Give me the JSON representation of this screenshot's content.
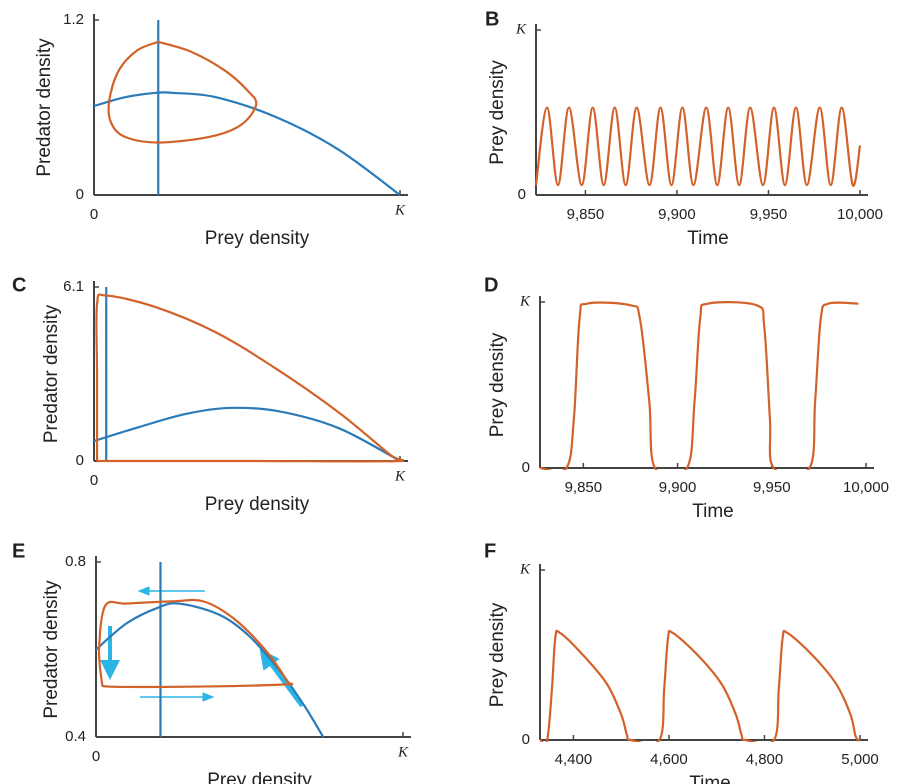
{
  "chart_data": [
    {
      "type": "line",
      "xlabel": "Prey density",
      "ylabel": "Predator density",
      "xlim": [
        0,
        1
      ],
      "xticks": [
        0,
        {
          "value": 1,
          "label": "K"
        }
      ],
      "ylim": [
        0,
        1.2
      ],
      "yticks": [
        0,
        1.2
      ],
      "series": [
        {
          "color": "#2b7bb9",
          "x": [
            0,
            0.1,
            0.2,
            0.26,
            0.4,
            0.6,
            0.8,
            1
          ],
          "values": [
            0.61,
            0.67,
            0.7,
            0.7,
            0.67,
            0.53,
            0.31,
            0
          ]
        },
        {
          "color": "#2b7bb9",
          "x": [
            0.21,
            0.21
          ],
          "values": [
            0,
            1.2
          ]
        },
        {
          "color": "#d2622a",
          "x": [
            0.21,
            0.32,
            0.43,
            0.5,
            0.53,
            0.48,
            0.38,
            0.21,
            0.1,
            0.055,
            0.05,
            0.08,
            0.14,
            0.21
          ],
          "values": [
            1.05,
            0.98,
            0.85,
            0.72,
            0.62,
            0.48,
            0.4,
            0.36,
            0.4,
            0.5,
            0.65,
            0.85,
            0.99,
            1.05
          ]
        }
      ]
    },
    {
      "type": "line",
      "label": "B",
      "xlabel": "Time",
      "ylabel": "Prey density",
      "xlim": [
        9823,
        10000
      ],
      "xticks": [
        {
          "value": 9850,
          "label": "9,850"
        },
        {
          "value": 9900,
          "label": "9,900"
        },
        {
          "value": 9950,
          "label": "9,950"
        },
        {
          "value": 10000,
          "label": "10,000"
        }
      ],
      "ylim": [
        0,
        1
      ],
      "yticks": [
        0,
        {
          "value": 1,
          "label": "K"
        }
      ],
      "series": [
        {
          "color": "#d2622a",
          "x": [
            9823,
            9829,
            9835,
            9841,
            9848,
            9854,
            9860,
            9866,
            9872,
            9878,
            9885,
            9891,
            9897,
            9903,
            9909,
            9916,
            9922,
            9928,
            9934,
            9940,
            9947,
            9953,
            9959,
            9965,
            9971,
            9978,
            9984,
            9990,
            9996,
            10000
          ],
          "values": [
            0.06,
            0.53,
            0.06,
            0.53,
            0.06,
            0.53,
            0.06,
            0.53,
            0.06,
            0.53,
            0.06,
            0.53,
            0.06,
            0.53,
            0.06,
            0.53,
            0.06,
            0.53,
            0.06,
            0.53,
            0.06,
            0.53,
            0.06,
            0.53,
            0.06,
            0.53,
            0.06,
            0.53,
            0.06,
            0.3
          ]
        }
      ]
    },
    {
      "type": "line",
      "label": "C",
      "xlabel": "Prey density",
      "ylabel": "Predator density",
      "xlim": [
        0,
        1
      ],
      "xticks": [
        0,
        {
          "value": 1,
          "label": "K"
        }
      ],
      "ylim": [
        0,
        6.1
      ],
      "yticks": [
        0,
        6.1
      ],
      "series": [
        {
          "color": "#2b7bb9",
          "x": [
            0,
            0.15,
            0.3,
            0.44,
            0.6,
            0.8,
            1
          ],
          "values": [
            0.7,
            1.2,
            1.65,
            1.86,
            1.75,
            1.15,
            0
          ]
        },
        {
          "color": "#2b7bb9",
          "x": [
            0.04,
            0.04
          ],
          "values": [
            0,
            6.1
          ]
        },
        {
          "color": "#d2622a",
          "x": [
            0.01,
            0.01,
            0.01,
            0.04,
            0.2,
            0.4,
            0.6,
            0.8,
            0.97,
            1,
            0.5,
            0.01
          ],
          "values": [
            0,
            3,
            5.5,
            5.8,
            5.4,
            4.5,
            3.2,
            1.7,
            0.2,
            0,
            0,
            0
          ]
        }
      ]
    },
    {
      "type": "line",
      "label": "D",
      "xlabel": "Time",
      "ylabel": "Prey density",
      "xlim": [
        9827,
        10000
      ],
      "xticks": [
        {
          "value": 9850,
          "label": "9,850"
        },
        {
          "value": 9900,
          "label": "9,900"
        },
        {
          "value": 9950,
          "label": "9,950"
        },
        {
          "value": 10000,
          "label": "10,000"
        }
      ],
      "ylim": [
        0,
        1
      ],
      "yticks": [
        0,
        {
          "value": 1,
          "label": "K"
        }
      ],
      "series": [
        {
          "color": "#d2622a",
          "x": [
            9827,
            9841,
            9845,
            9848,
            9852,
            9875,
            9880,
            9885,
            9888,
            9905,
            9909,
            9912,
            9916,
            9942,
            9946,
            9949,
            9951,
            9970,
            9973,
            9976,
            9980,
            9996
          ],
          "values": [
            0,
            0,
            0.3,
            0.9,
            0.99,
            0.98,
            0.9,
            0.4,
            0,
            0,
            0.4,
            0.9,
            0.99,
            0.98,
            0.85,
            0.3,
            0,
            0,
            0.4,
            0.9,
            0.99,
            0.99
          ]
        }
      ]
    },
    {
      "type": "line",
      "label": "E",
      "xlabel": "Prey density",
      "ylabel": "Predator density",
      "xlim": [
        0,
        1
      ],
      "xticks": [
        0,
        {
          "value": 1,
          "label": "K"
        }
      ],
      "ylim": [
        0.4,
        0.8
      ],
      "yticks": [
        0.4,
        0.8
      ],
      "series": [
        {
          "color": "#2b7bb9",
          "x": [
            0,
            0.1,
            0.2,
            0.27,
            0.4,
            0.5,
            0.6,
            0.68,
            0.74
          ],
          "values": [
            0.6,
            0.66,
            0.695,
            0.705,
            0.68,
            0.63,
            0.55,
            0.47,
            0.4
          ]
        },
        {
          "color": "#2b7bb9",
          "x": [
            0.21,
            0.21
          ],
          "values": [
            0.4,
            0.8
          ]
        },
        {
          "color": "#d2622a",
          "x": [
            0.02,
            0.01,
            0.03,
            0.1,
            0.25,
            0.35,
            0.45,
            0.55,
            0.62,
            0.61,
            0.3,
            0.05,
            0.02
          ],
          "values": [
            0.52,
            0.6,
            0.7,
            0.705,
            0.71,
            0.71,
            0.67,
            0.6,
            0.53,
            0.52,
            0.515,
            0.515,
            0.52
          ]
        }
      ]
    },
    {
      "type": "line",
      "label": "F",
      "xlabel": "Time",
      "ylabel": "Prey density",
      "xlim": [
        4330,
        5000
      ],
      "xticks": [
        {
          "value": 4400,
          "label": "4,400"
        },
        {
          "value": 4600,
          "label": "4,600"
        },
        {
          "value": 4800,
          "label": "4,800"
        },
        {
          "value": 5000,
          "label": "5,000"
        }
      ],
      "ylim": [
        0,
        1
      ],
      "yticks": [
        0,
        {
          "value": 1,
          "label": "K"
        }
      ],
      "series": [
        {
          "color": "#d2622a",
          "x": [
            4330,
            4345,
            4355,
            4362,
            4372,
            4420,
            4470,
            4500,
            4512,
            4520,
            4580,
            4590,
            4598,
            4608,
            4660,
            4710,
            4740,
            4752,
            4760,
            4820,
            4830,
            4838,
            4848,
            4900,
            4950,
            4980,
            4990,
            4996,
            5000
          ],
          "values": [
            0,
            0,
            0.3,
            0.6,
            0.63,
            0.5,
            0.33,
            0.15,
            0.03,
            0,
            0,
            0.3,
            0.6,
            0.63,
            0.5,
            0.33,
            0.15,
            0.03,
            0,
            0,
            0.3,
            0.6,
            0.63,
            0.5,
            0.33,
            0.15,
            0.03,
            0,
            0
          ]
        }
      ]
    }
  ]
}
